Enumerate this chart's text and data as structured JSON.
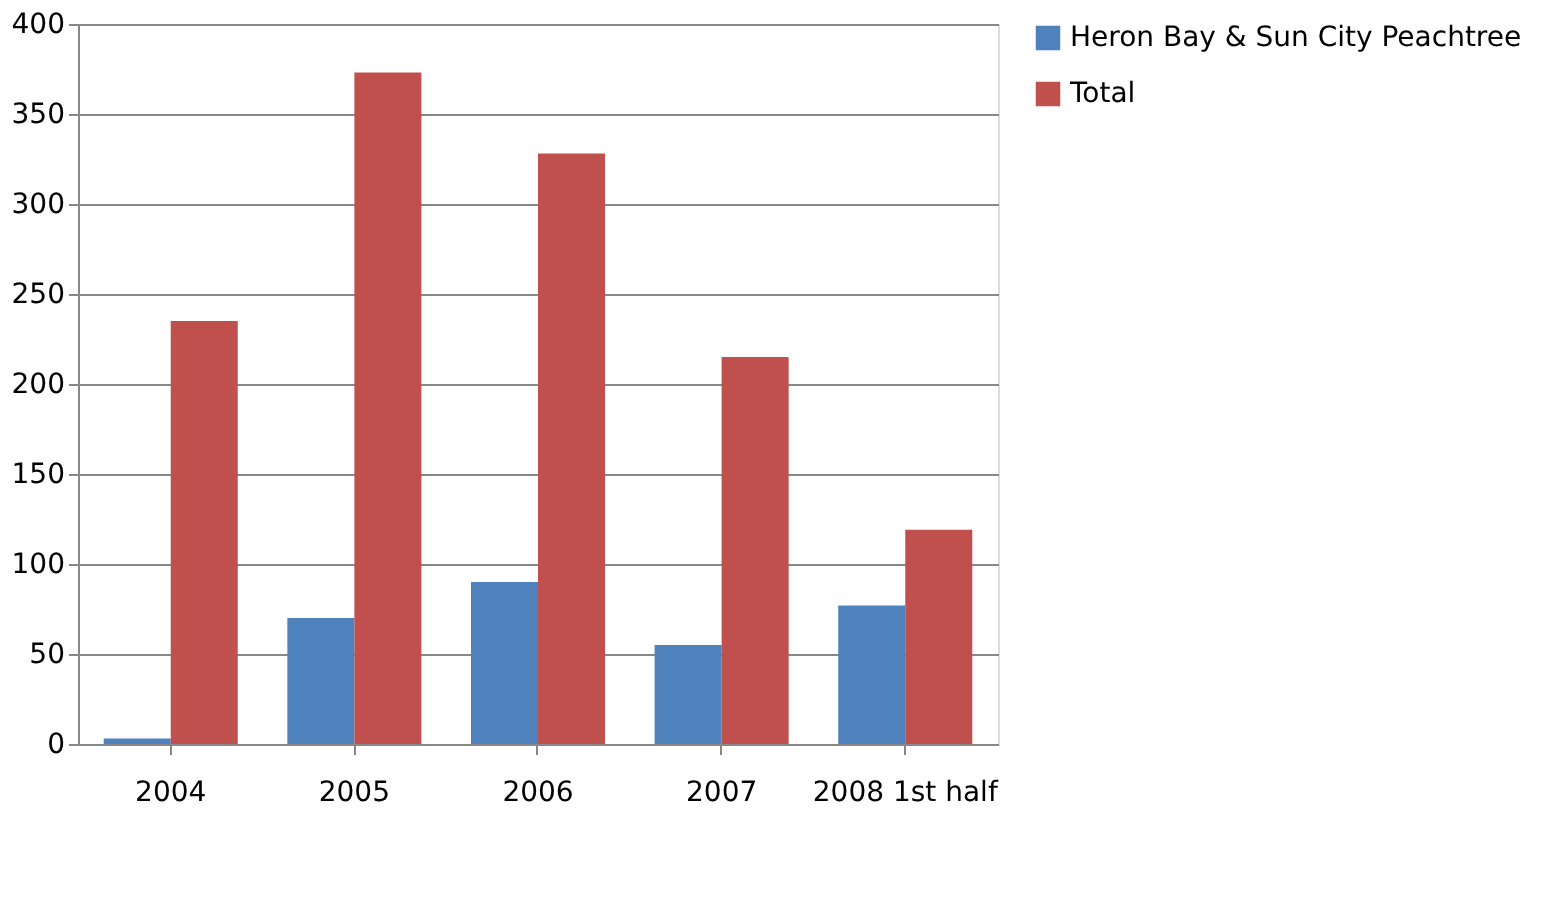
{
  "chart_data": {
    "type": "bar",
    "categories": [
      "2004",
      "2005",
      "2006",
      "2007",
      "2008 1st half"
    ],
    "series": [
      {
        "name": "Heron Bay & Sun City Peachtree",
        "color": "#4f81bd",
        "values": [
          3,
          70,
          90,
          55,
          77
        ]
      },
      {
        "name": "Total",
        "color": "#c0504d",
        "values": [
          235,
          373,
          328,
          215,
          119
        ]
      }
    ],
    "ylim": [
      0,
      400
    ],
    "yticks": [
      0,
      50,
      100,
      150,
      200,
      250,
      300,
      350,
      400
    ],
    "grid": "y",
    "legend": "right"
  }
}
